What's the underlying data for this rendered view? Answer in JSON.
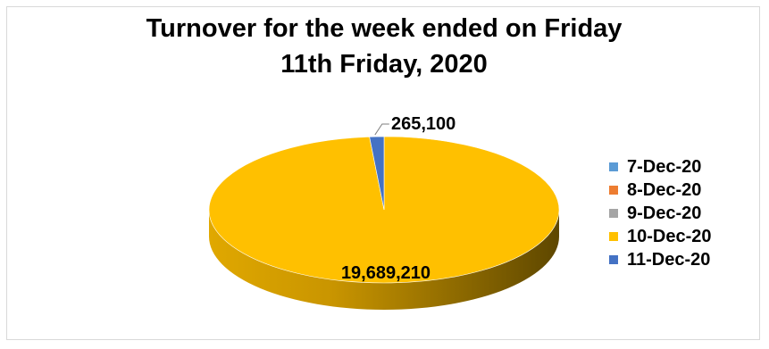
{
  "chart_data": {
    "type": "pie",
    "title": [
      "Turnover for the week ended on Friday",
      "11th Friday, 2020"
    ],
    "categories": [
      "7-Dec-20",
      "8-Dec-20",
      "9-Dec-20",
      "10-Dec-20",
      "11-Dec-20"
    ],
    "values": [
      0,
      0,
      0,
      19689210,
      265100
    ],
    "data_labels": [
      "",
      "",
      "",
      "19,689,210",
      "265,100"
    ],
    "colors": [
      "#5B9BD5",
      "#ED7D31",
      "#A5A5A5",
      "#FFC000",
      "#4472C4"
    ],
    "legend_position": "right",
    "style": "3d"
  }
}
